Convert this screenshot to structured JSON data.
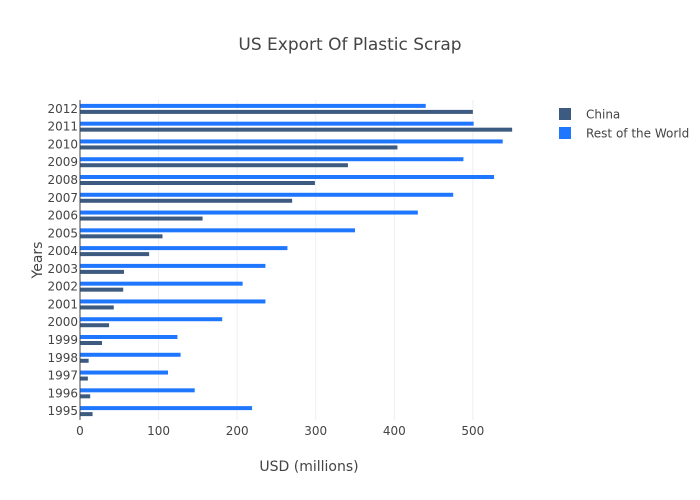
{
  "chart_data": {
    "type": "bar",
    "orientation": "horizontal",
    "title": "US Export Of Plastic Scrap",
    "xlabel": "USD (millions)",
    "ylabel": "Years",
    "xlim": [
      0,
      560
    ],
    "xticks": [
      0,
      100,
      200,
      300,
      400,
      500
    ],
    "categories": [
      "1995",
      "1996",
      "1997",
      "1998",
      "1999",
      "2000",
      "2001",
      "2002",
      "2003",
      "2004",
      "2005",
      "2006",
      "2007",
      "2008",
      "2009",
      "2010",
      "2011",
      "2012"
    ],
    "series": [
      {
        "name": "China",
        "color": "#3d5a80",
        "values": [
          16,
          13,
          10,
          11,
          28,
          37,
          43,
          55,
          56,
          88,
          105,
          156,
          270,
          299,
          341,
          404,
          550,
          500
        ]
      },
      {
        "name": "Rest of the World",
        "color": "#1f77ff",
        "values": [
          219,
          146,
          112,
          128,
          124,
          181,
          236,
          207,
          236,
          264,
          350,
          430,
          475,
          527,
          488,
          538,
          501,
          440
        ]
      }
    ],
    "grid": true,
    "legend_position": "top-right"
  }
}
